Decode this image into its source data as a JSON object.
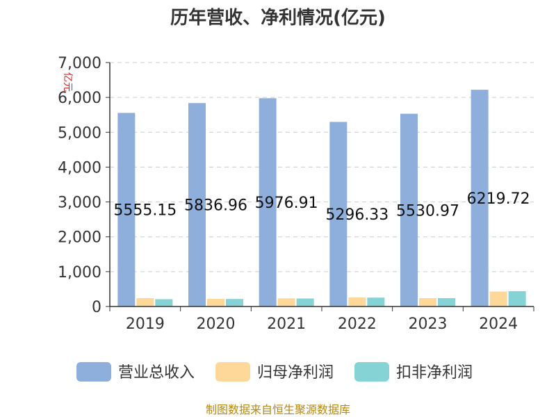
{
  "chart_data": {
    "type": "bar",
    "title": "历年营收、净利情况(亿元)",
    "ylabel": "亿元",
    "categories": [
      "2019",
      "2020",
      "2021",
      "2022",
      "2023",
      "2024"
    ],
    "ylim": [
      0,
      7000
    ],
    "yticks": [
      "0",
      "1,000",
      "2,000",
      "3,000",
      "4,000",
      "5,000",
      "6,000",
      "7,000"
    ],
    "ytick_values": [
      0,
      1000,
      2000,
      3000,
      4000,
      5000,
      6000,
      7000
    ],
    "grid": true,
    "legend_position": "bottom",
    "series": [
      {
        "name": "营业总收入",
        "color": "#8eaedb",
        "values": [
          5555.15,
          5836.96,
          5976.91,
          5296.33,
          5530.97,
          6219.72
        ],
        "labels": [
          "5555.15",
          "5836.96",
          "5976.91",
          "5296.33",
          "5530.97",
          "6219.72"
        ]
      },
      {
        "name": "归母净利润",
        "color": "#fdd899",
        "values": [
          240,
          220,
          235,
          260,
          240,
          430
        ]
      },
      {
        "name": "扣非净利润",
        "color": "#86d3d6",
        "values": [
          210,
          215,
          230,
          255,
          240,
          440
        ]
      }
    ]
  },
  "footer": "制图数据来自恒生聚源数据库"
}
